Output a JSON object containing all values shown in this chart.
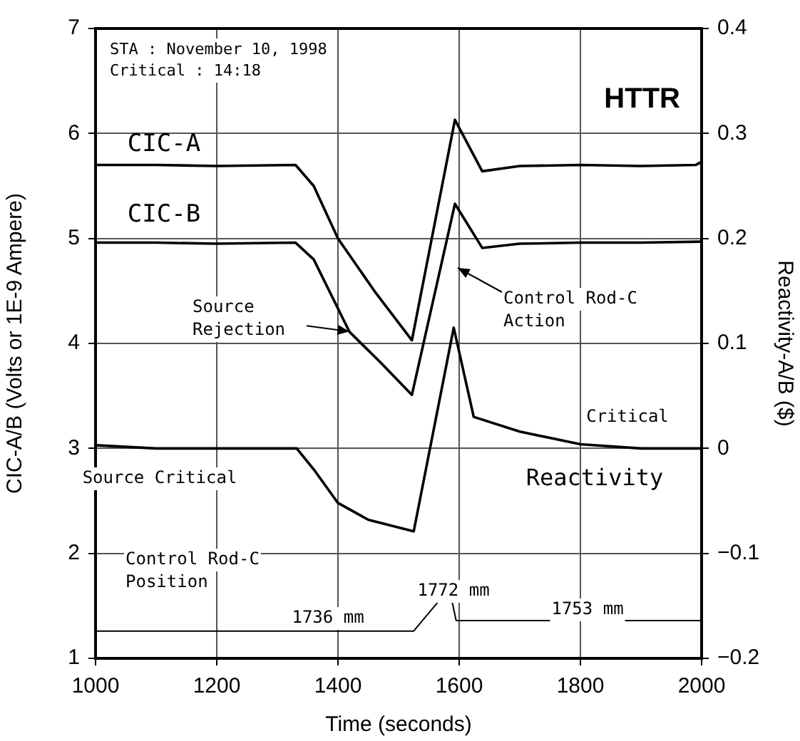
{
  "chart_data": {
    "type": "line",
    "xlabel": "Time (seconds)",
    "ylabel": "CIC-A/B (Volts or 1E-9 Ampere)",
    "y2label": "Reactivity-A/B ($)",
    "xlim": [
      1000,
      2000
    ],
    "xticks": [
      1000,
      1200,
      1400,
      1600,
      1800,
      2000
    ],
    "ylim": [
      1,
      7
    ],
    "yticks": [
      1,
      2,
      3,
      4,
      5,
      6,
      7
    ],
    "y2lim": [
      -0.2,
      0.4
    ],
    "y2ticks": [
      -0.2,
      -0.1,
      0,
      0.1,
      0.2,
      0.3,
      0.4
    ],
    "grid": true,
    "legend": false,
    "marker": "none",
    "line_style": "solid",
    "series": [
      {
        "name": "CIC-A",
        "color": "#000000",
        "x": [
          1000,
          1100,
          1200,
          1330,
          1360,
          1400,
          1460,
          1522,
          1593,
          1638,
          1700,
          1800,
          1900,
          1990,
          2000
        ],
        "values": [
          5.7,
          5.7,
          5.69,
          5.7,
          5.5,
          5.0,
          4.5,
          4.03,
          6.13,
          5.64,
          5.69,
          5.7,
          5.69,
          5.7,
          5.73
        ]
      },
      {
        "name": "CIC-B",
        "color": "#000000",
        "x": [
          1000,
          1100,
          1200,
          1330,
          1360,
          1419,
          1470,
          1522,
          1593,
          1638,
          1700,
          1800,
          1900,
          2000
        ],
        "values": [
          4.96,
          4.96,
          4.95,
          4.96,
          4.8,
          4.11,
          3.82,
          3.51,
          5.33,
          4.91,
          4.95,
          4.96,
          4.96,
          4.97
        ]
      },
      {
        "name": "Reactivity",
        "color": "#000000",
        "axis": "y2",
        "x": [
          1000,
          1100,
          1200,
          1332,
          1360,
          1400,
          1450,
          1525,
          1591,
          1624,
          1700,
          1800,
          1900,
          2000
        ],
        "values": [
          0.003,
          0.0,
          0.0,
          0.0,
          -0.02,
          -0.052,
          -0.068,
          -0.079,
          0.115,
          0.03,
          0.016,
          0.004,
          0.0,
          0.0
        ]
      },
      {
        "color": "#000000",
        "x": [
          1000,
          1525,
          1567,
          1588,
          1595,
          2000
        ],
        "values": [
          1.26,
          1.26,
          1.55,
          1.55,
          1.36,
          1.36
        ]
      }
    ],
    "annotations": [
      "STA : November 10, 1998",
      "Critical : 14:18",
      "HTTR",
      "Source Rejection",
      "Control Rod-C Action",
      "Critical",
      "Source Critical",
      "Control Rod-C Position",
      "1736 mm",
      "1772 mm",
      "1753 mm"
    ]
  }
}
